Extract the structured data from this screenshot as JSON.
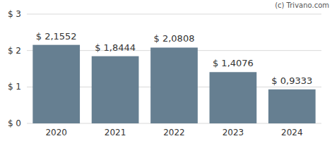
{
  "chart_data": {
    "type": "bar",
    "annotations": [
      "(c) Trivano.com"
    ],
    "categories": [
      "2020",
      "2021",
      "2022",
      "2023",
      "2024"
    ],
    "values": [
      2.1552,
      1.8444,
      2.0808,
      1.4076,
      0.9333
    ],
    "value_labels": [
      "$ 2,1552",
      "$ 1,8444",
      "$ 2,0808",
      "$ 1,4076",
      "$ 0,9333"
    ],
    "data_labels": true,
    "color": "#667f91",
    "ylim": [
      0,
      3
    ],
    "yticks": [
      {
        "value": 0,
        "label": "$ 0"
      },
      {
        "value": 1,
        "label": "$ 1"
      },
      {
        "value": 2,
        "label": "$ 2"
      },
      {
        "value": 3,
        "label": "$ 3"
      }
    ],
    "grid": true
  }
}
